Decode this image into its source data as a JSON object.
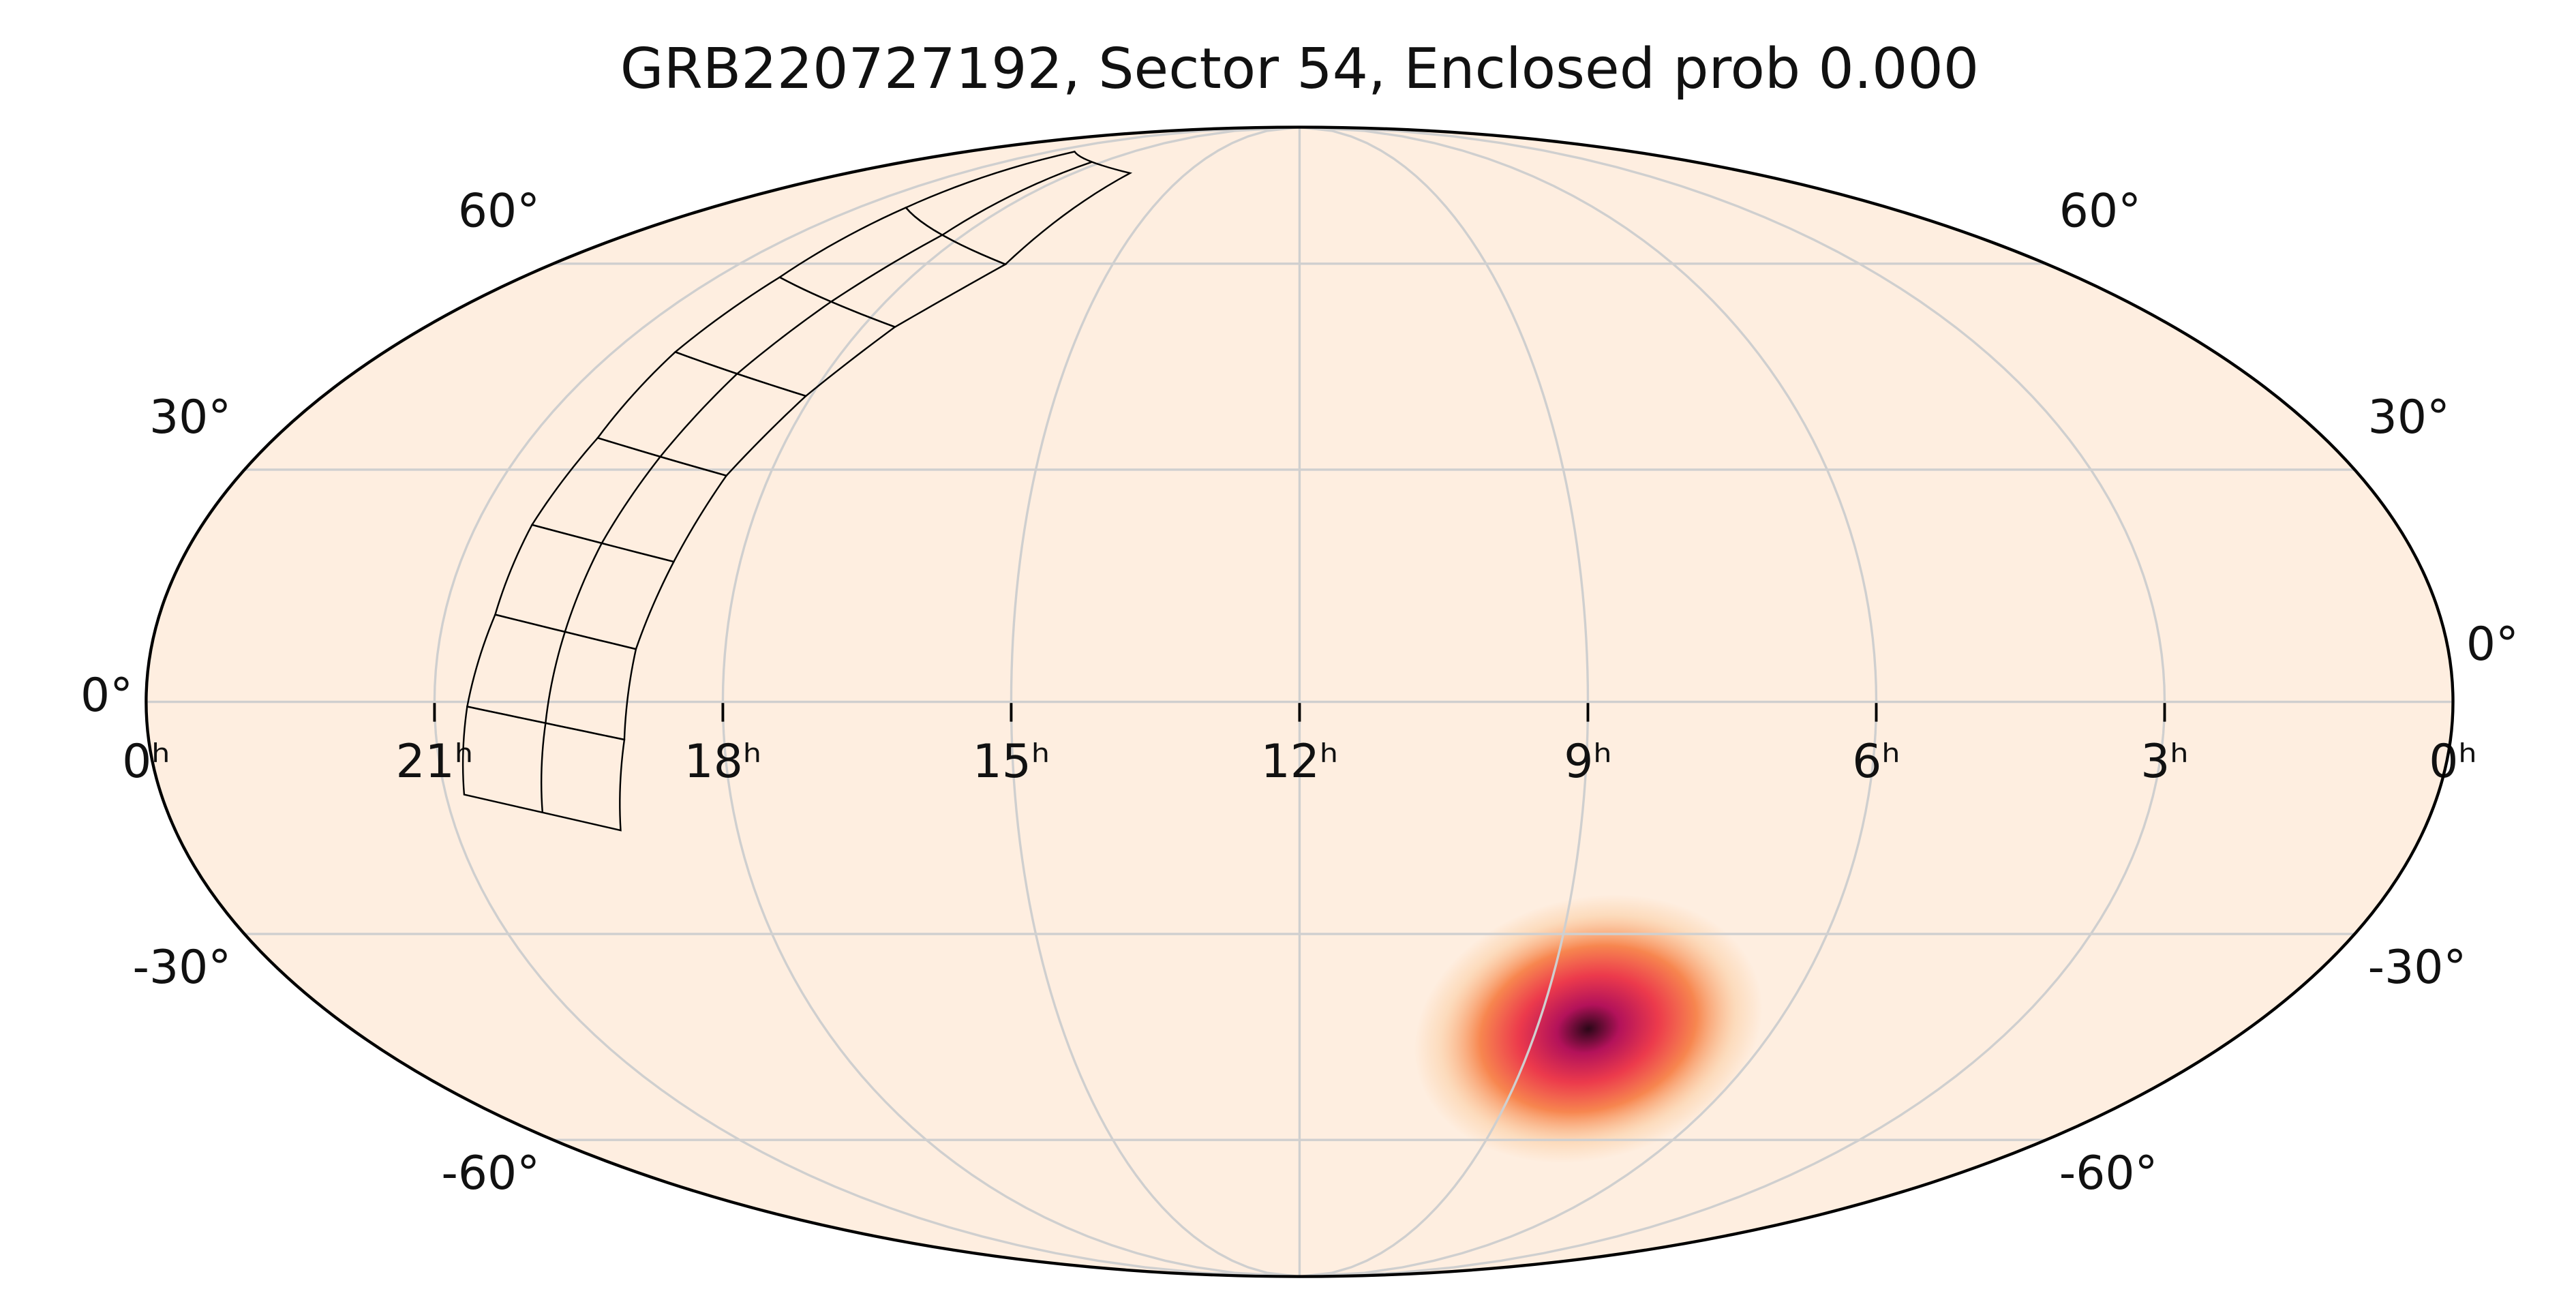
{
  "chart_data": {
    "type": "mollweide",
    "title": "GRB220727192, Sector 54, Enclosed prob 0.000",
    "xticks": [
      {
        "value": 24,
        "label": "0ʰ"
      },
      {
        "value": 21,
        "label": "21ʰ"
      },
      {
        "value": 18,
        "label": "18ʰ"
      },
      {
        "value": 15,
        "label": "15ʰ"
      },
      {
        "value": 12,
        "label": "12ʰ"
      },
      {
        "value": 9,
        "label": "9ʰ"
      },
      {
        "value": 6,
        "label": "6ʰ"
      },
      {
        "value": 3,
        "label": "3ʰ"
      },
      {
        "value": 0,
        "label": "0ʰ"
      }
    ],
    "yticks": [
      {
        "value": 60,
        "label": "60°"
      },
      {
        "value": 30,
        "label": "30°"
      },
      {
        "value": 0,
        "label": "0°"
      },
      {
        "value": -30,
        "label": "-30°"
      },
      {
        "value": -60,
        "label": "-60°"
      }
    ],
    "grid": true,
    "background_color": "#feeee0",
    "localization": {
      "ra": 125.2,
      "dec": -43.1,
      "sigma_deg": 6
    },
    "colormap": [
      "#2a0717",
      "#b3125a",
      "#ec3a4c",
      "#f7864f",
      "#fbc99a"
    ],
    "footprint": {
      "left_edge": [
        [
          312.1,
          -11.8
        ],
        [
          309.9,
          -0.6
        ],
        [
          307.0,
          11.1
        ],
        [
          305.9,
          22.7
        ],
        [
          303.3,
          34.3
        ],
        [
          302.8,
          46.4
        ],
        [
          300.4,
          57.8
        ],
        [
          300.4,
          69.8
        ],
        [
          301.6,
          81.7
        ]
      ],
      "right_edge": [
        [
          288.7,
          -16.4
        ],
        [
          285.6,
          -4.8
        ],
        [
          284.0,
          6.7
        ],
        [
          280.7,
          17.9
        ],
        [
          277.3,
          29.2
        ],
        [
          271.0,
          40.1
        ],
        [
          263.3,
          50.1
        ],
        [
          250.8,
          59.9
        ],
        [
          247.5,
          76.7
        ]
      ]
    }
  }
}
